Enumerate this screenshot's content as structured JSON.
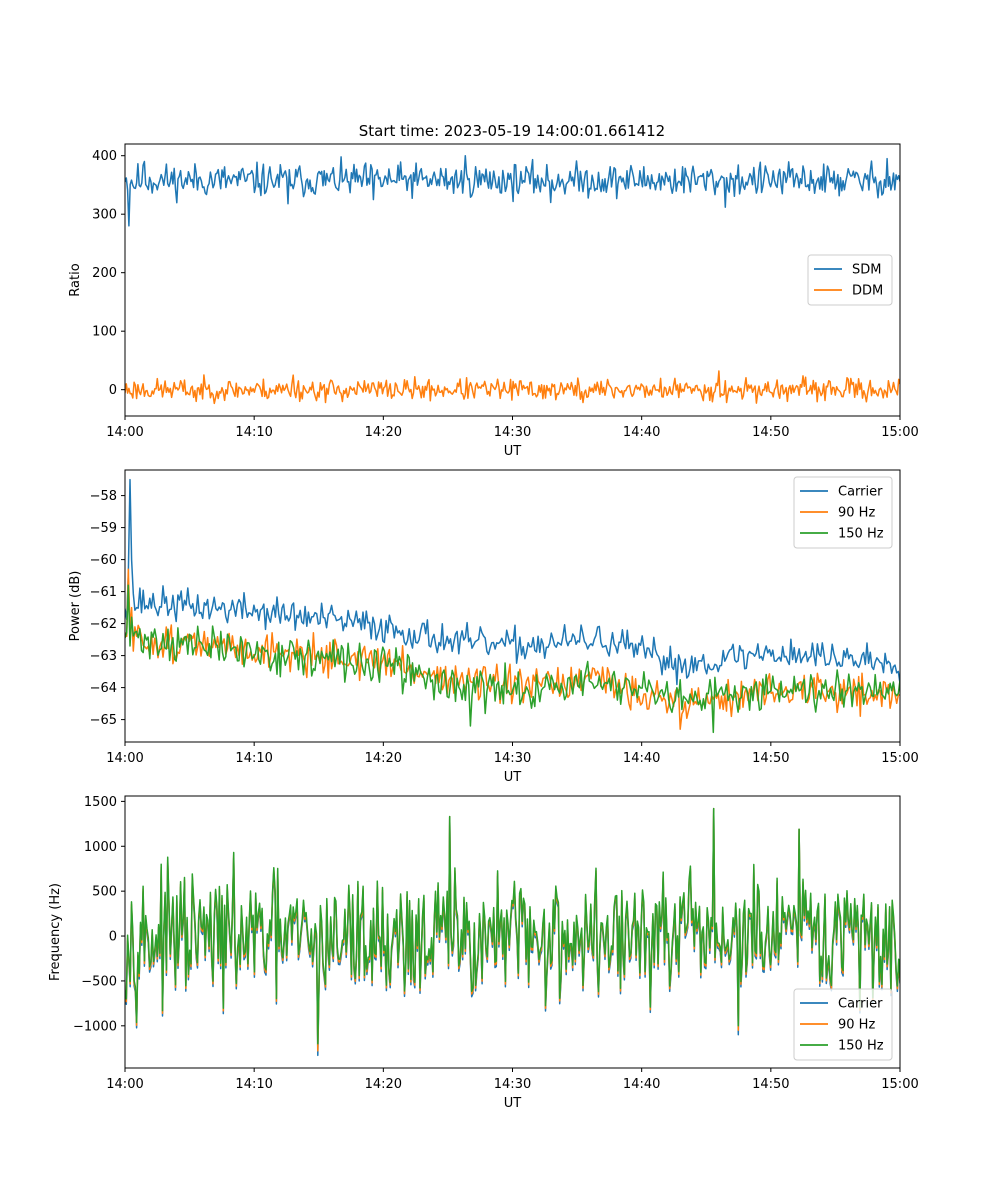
{
  "title": "Start time: 2023-05-19 14:00:01.661412",
  "colors": {
    "blue": "#1f77b4",
    "orange": "#ff7f0e",
    "green": "#2ca02c"
  },
  "chart_data": [
    {
      "type": "line",
      "title": "Start time: 2023-05-19 14:00:01.661412",
      "xlabel": "UT",
      "ylabel": "Ratio",
      "x_ticks": [
        "14:00",
        "14:10",
        "14:20",
        "14:30",
        "14:40",
        "14:50",
        "15:00"
      ],
      "xlim_minutes": [
        0,
        60
      ],
      "ylim": [
        -45,
        420
      ],
      "y_ticks": [
        0,
        100,
        200,
        300,
        400
      ],
      "legend_position": "center-right",
      "series": [
        {
          "name": "SDM",
          "color": "#1f77b4",
          "baseline": 358,
          "amplitude": 14,
          "seed": 11,
          "anchors": [
            [
              0,
              355
            ],
            [
              0.3,
              280
            ],
            [
              0.7,
              345
            ],
            [
              1.5,
              390
            ],
            [
              12.6,
              318
            ],
            [
              19.2,
              325
            ],
            [
              26.3,
              400
            ],
            [
              33.0,
              320
            ],
            [
              46.5,
              312
            ],
            [
              59.0,
              395
            ]
          ]
        },
        {
          "name": "DDM",
          "color": "#ff7f0e",
          "baseline": 0,
          "amplitude": 9,
          "seed": 23,
          "anchors": [
            [
              5.5,
              -20
            ],
            [
              13.0,
              25
            ],
            [
              15.5,
              -22
            ],
            [
              35.5,
              -22
            ],
            [
              46.0,
              32
            ],
            [
              46.6,
              -22
            ]
          ]
        }
      ]
    },
    {
      "type": "line",
      "xlabel": "UT",
      "ylabel": "Power (dB)",
      "x_ticks": [
        "14:00",
        "14:10",
        "14:20",
        "14:30",
        "14:40",
        "14:50",
        "15:00"
      ],
      "xlim_minutes": [
        0,
        60
      ],
      "ylim": [
        -65.7,
        -57.2
      ],
      "y_ticks": [
        -58,
        -59,
        -60,
        -61,
        -62,
        -63,
        -64,
        -65
      ],
      "legend_position": "top-right",
      "series": [
        {
          "name": "Carrier",
          "color": "#1f77b4",
          "amplitude": 0.25,
          "seed": 37,
          "trend": [
            [
              0,
              -61.3
            ],
            [
              10,
              -61.6
            ],
            [
              20,
              -62.1
            ],
            [
              26,
              -62.6
            ],
            [
              30,
              -62.7
            ],
            [
              37,
              -62.5
            ],
            [
              43,
              -63.3
            ],
            [
              50,
              -62.9
            ],
            [
              60,
              -63.2
            ]
          ],
          "anchors": [
            [
              0.2,
              -60.5
            ],
            [
              0.35,
              -57.5
            ],
            [
              0.55,
              -60.0
            ],
            [
              0.9,
              -61.5
            ]
          ]
        },
        {
          "name": "90 Hz",
          "color": "#ff7f0e",
          "amplitude": 0.28,
          "seed": 51,
          "trend": [
            [
              0,
              -62.5
            ],
            [
              10,
              -62.8
            ],
            [
              20,
              -63.2
            ],
            [
              26,
              -63.8
            ],
            [
              30,
              -64.0
            ],
            [
              37,
              -63.8
            ],
            [
              43,
              -64.5
            ],
            [
              50,
              -64.1
            ],
            [
              60,
              -64.2
            ]
          ],
          "anchors": [
            [
              0.3,
              -60.3
            ],
            [
              0.5,
              -61.5
            ],
            [
              43.0,
              -65.3
            ],
            [
              47.0,
              -64.9
            ]
          ]
        },
        {
          "name": "150 Hz",
          "color": "#2ca02c",
          "amplitude": 0.3,
          "seed": 71,
          "trend": [
            [
              0,
              -62.4
            ],
            [
              10,
              -62.9
            ],
            [
              20,
              -63.3
            ],
            [
              26,
              -64.0
            ],
            [
              30,
              -64.1
            ],
            [
              37,
              -63.8
            ],
            [
              43,
              -64.5
            ],
            [
              50,
              -64.0
            ],
            [
              60,
              -64.0
            ]
          ],
          "anchors": [
            [
              0.3,
              -60.8
            ],
            [
              0.5,
              -61.8
            ],
            [
              26.7,
              -65.2
            ],
            [
              45.6,
              -65.4
            ]
          ]
        }
      ]
    },
    {
      "type": "line",
      "xlabel": "UT",
      "ylabel": "Frequency (Hz)",
      "x_ticks": [
        "14:00",
        "14:10",
        "14:20",
        "14:30",
        "14:40",
        "14:50",
        "15:00"
      ],
      "xlim_minutes": [
        0,
        60
      ],
      "ylim": [
        -1470,
        1560
      ],
      "y_ticks": [
        1500,
        1000,
        500,
        0,
        -500,
        -1000
      ],
      "legend_position": "bottom-right",
      "series": [
        {
          "name": "Carrier",
          "color": "#1f77b4",
          "offset": -60,
          "amplitude": 330,
          "seed": 97,
          "anchors": [
            [
              14.9,
              -1330
            ],
            [
              25.1,
              1330
            ],
            [
              45.6,
              1420
            ],
            [
              47.5,
              -1100
            ],
            [
              52.2,
              1190
            ]
          ]
        },
        {
          "name": "90 Hz",
          "color": "#ff7f0e",
          "offset": -30,
          "amplitude": 330,
          "seed": 97,
          "anchors": [
            [
              14.9,
              -1280
            ],
            [
              25.1,
              1330
            ],
            [
              45.6,
              1420
            ],
            [
              47.5,
              -1050
            ],
            [
              52.2,
              1190
            ]
          ]
        },
        {
          "name": "150 Hz",
          "color": "#2ca02c",
          "offset": 0,
          "amplitude": 330,
          "seed": 97,
          "anchors": [
            [
              14.9,
              -1200
            ],
            [
              25.1,
              1330
            ],
            [
              45.6,
              1420
            ],
            [
              47.5,
              -1000
            ],
            [
              52.2,
              1190
            ]
          ]
        }
      ]
    }
  ]
}
